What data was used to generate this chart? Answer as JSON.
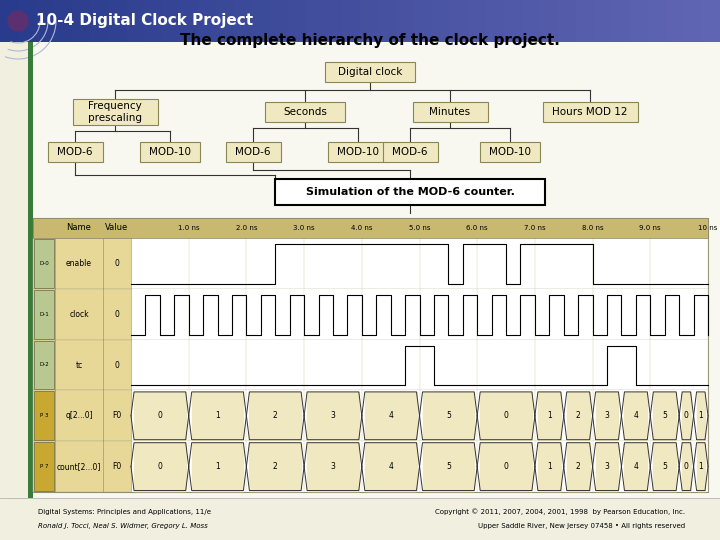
{
  "title_bar": "10-4 Digital Clock Project",
  "title_bar_bg_left": "#2a3a8c",
  "title_bar_bg_right": "#6070c0",
  "title_bar_text_color": "#ffffff",
  "slide_bg": "#f0efe0",
  "main_title": "The complete hierarchy of the clock project.",
  "main_title_color": "#000000",
  "box_fill": "#f0e8c0",
  "box_edge": "#888855",
  "sim_box_fill": "#ffffff",
  "sim_box_edge": "#000000",
  "sim_text": "Simulation of the MOD-6 counter.",
  "footer_left1": "Digital Systems: Principles and Applications, 11/e",
  "footer_left2": "Ronald J. Tocci, Neal S. Widmer, Gregory L. Moss",
  "footer_right1": "Copyright © 2011, 2007, 2004, 2001, 1998  by Pearson Education, Inc.",
  "footer_right2": "Upper Saddle River, New Jersey 07458 • All rights reserved",
  "green_line_color": "#3a7a3a",
  "accent_circle_color": "#5a3070",
  "waveform_bg": "#e8d898",
  "waveform_header_bg": "#c8b870",
  "waveform_sig_bg": "#ffffff",
  "waveform_row_labels": [
    "enable",
    "clock",
    "tc",
    "q[2...0]",
    "count[2...0]"
  ],
  "waveform_row_icons": [
    "D-0",
    "D-1",
    "D-2",
    "P 3",
    "P 7"
  ],
  "waveform_values": [
    "0",
    "0",
    "0",
    "F0",
    "F0"
  ],
  "time_labels": [
    "1.0 ns",
    "2.0 ns",
    "3.0 ns",
    "4.0 ns",
    "5.0 ns",
    "6.0 ns",
    "7.0 ns",
    "8.0 ns",
    "9.0 ns",
    "10 ns"
  ]
}
